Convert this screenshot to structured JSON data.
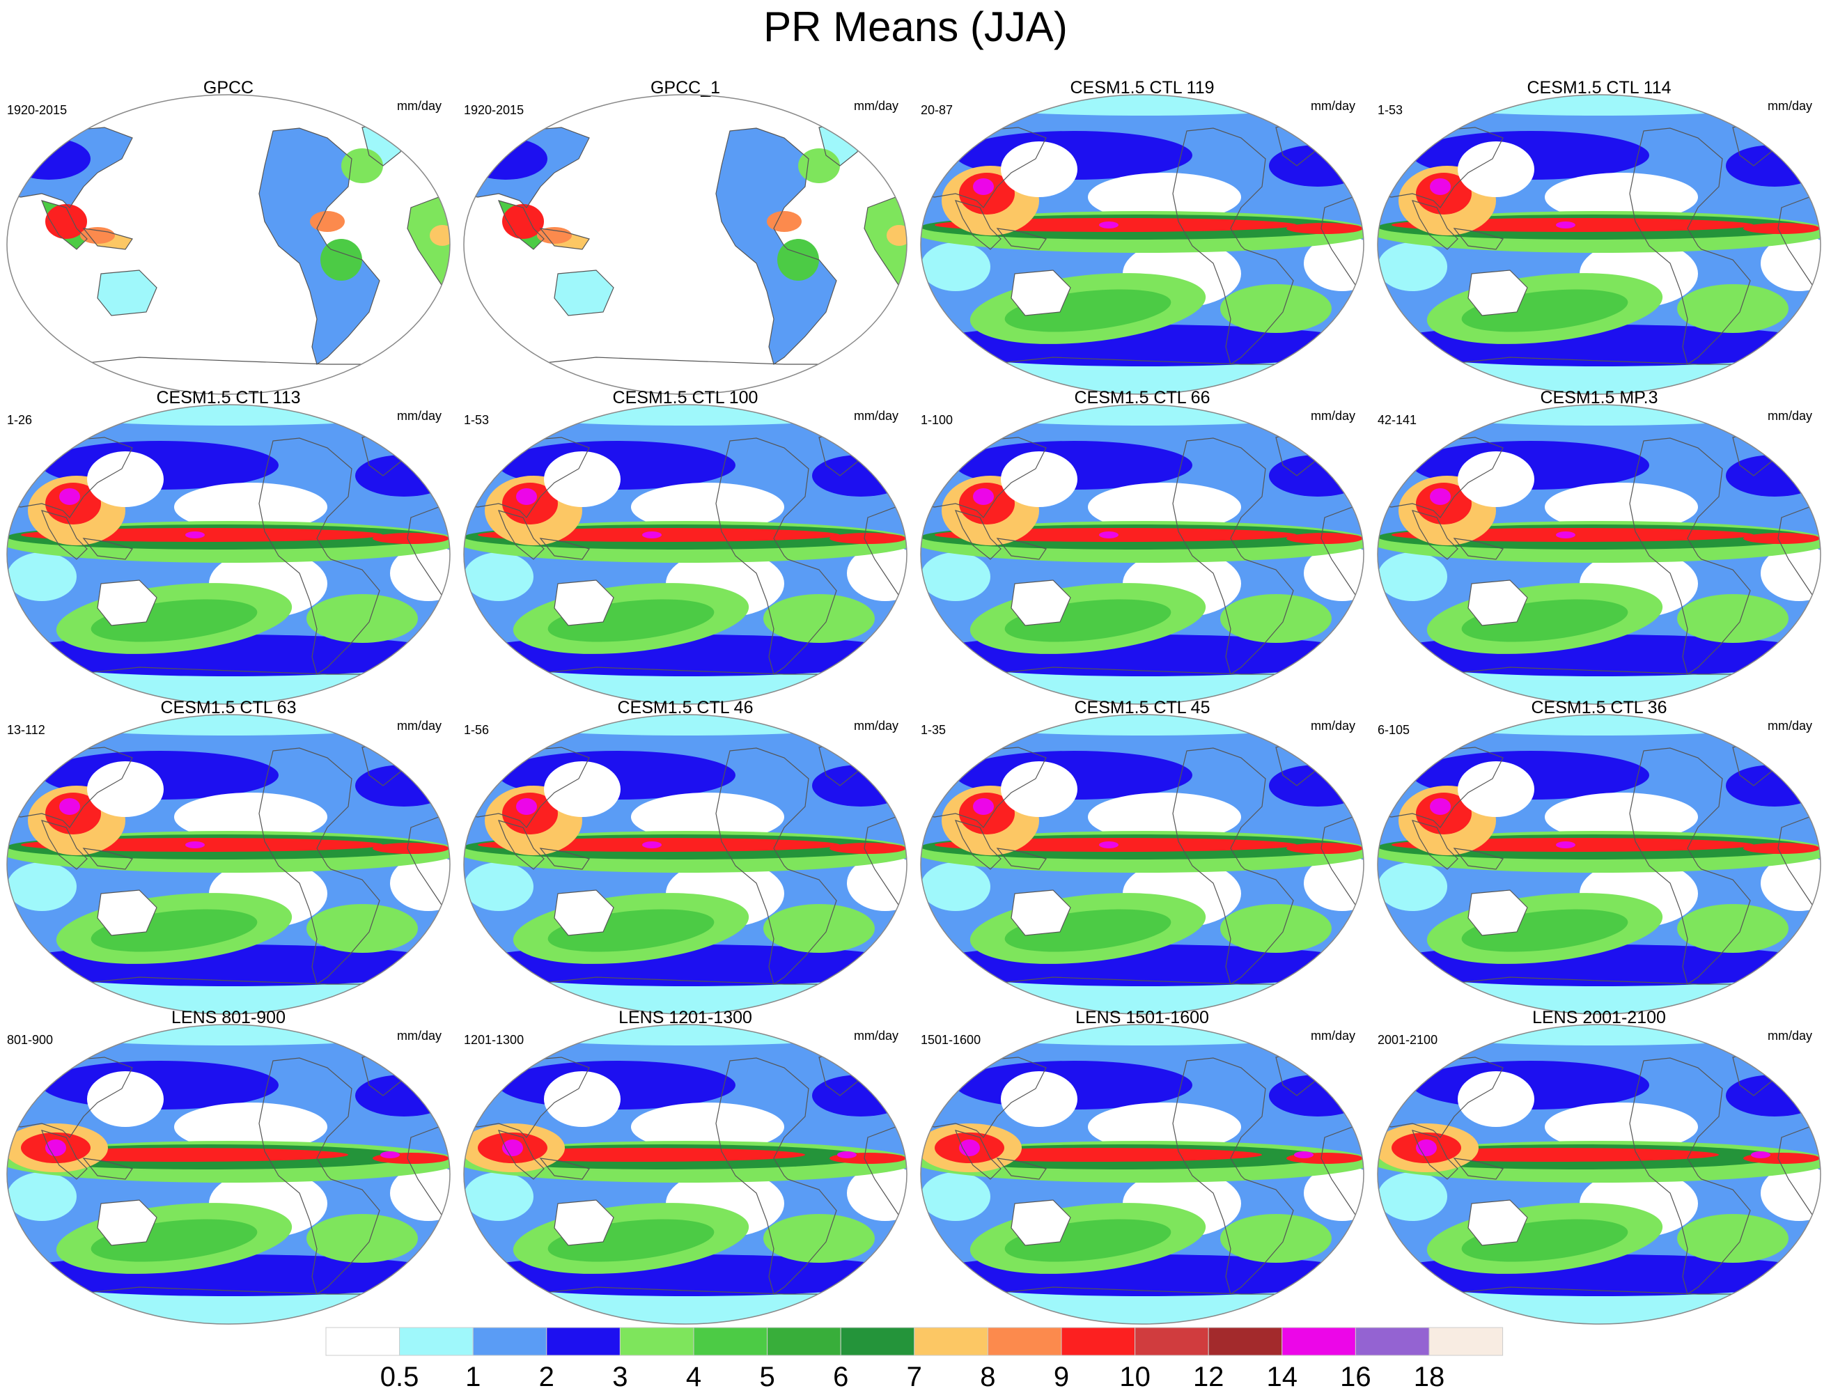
{
  "title": "PR Means (JJA)",
  "units": "mm/day",
  "colorbar": {
    "ticks": [
      "0.5",
      "1",
      "2",
      "3",
      "4",
      "5",
      "6",
      "7",
      "8",
      "9",
      "10",
      "12",
      "14",
      "16",
      "18"
    ],
    "colors": [
      "#ffffff",
      "#9ff8fb",
      "#5a9cf5",
      "#1d10f0",
      "#7ee55c",
      "#4ccb45",
      "#38ae3a",
      "#24943a",
      "#fcc764",
      "#fc8a4d",
      "#fc2020",
      "#d03c3e",
      "#a32a2c",
      "#ec06e8",
      "#9463d2",
      "#f8ece2"
    ]
  },
  "panels": [
    {
      "title": "GPCC",
      "years": "1920-2015",
      "kind": "obs"
    },
    {
      "title": "GPCC_1",
      "years": "1920-2015",
      "kind": "obs"
    },
    {
      "title": "CESM1.5 CTL 119",
      "years": "20-87",
      "kind": "cesm"
    },
    {
      "title": "CESM1.5 CTL 114",
      "years": "1-53",
      "kind": "cesm"
    },
    {
      "title": "CESM1.5 CTL 113",
      "years": "1-26",
      "kind": "cesm"
    },
    {
      "title": "CESM1.5 CTL 100",
      "years": "1-53",
      "kind": "cesm"
    },
    {
      "title": "CESM1.5 CTL 66",
      "years": "1-100",
      "kind": "cesm"
    },
    {
      "title": "CESM1.5 MP.3",
      "years": "42-141",
      "kind": "cesm"
    },
    {
      "title": "CESM1.5 CTL 63",
      "years": "13-112",
      "kind": "cesm"
    },
    {
      "title": "CESM1.5 CTL 46",
      "years": "1-56",
      "kind": "cesm"
    },
    {
      "title": "CESM1.5 CTL 45",
      "years": "1-35",
      "kind": "cesm"
    },
    {
      "title": "CESM1.5 CTL 36",
      "years": "6-105",
      "kind": "cesm"
    },
    {
      "title": "LENS 801-900",
      "years": "801-900",
      "kind": "lens"
    },
    {
      "title": "LENS 1201-1300",
      "years": "1201-1300",
      "kind": "lens"
    },
    {
      "title": "LENS 1501-1600",
      "years": "1501-1600",
      "kind": "lens"
    },
    {
      "title": "LENS 2001-2100",
      "years": "2001-2100",
      "kind": "lens"
    }
  ]
}
